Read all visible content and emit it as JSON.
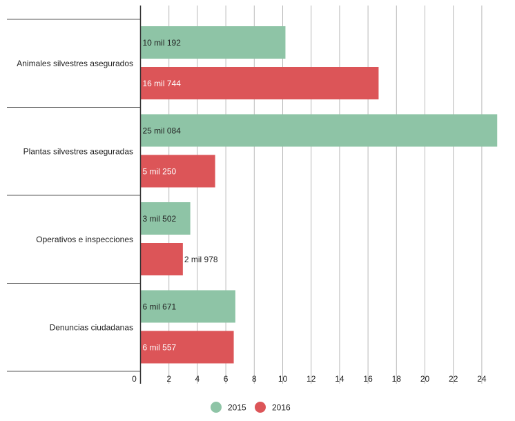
{
  "chart_data": {
    "type": "bar",
    "orientation": "horizontal",
    "categories": [
      "Animales silvestres asegurados",
      "Plantas silvestres aseguradas",
      "Operativos e inspecciones",
      "Denuncias ciudadanas"
    ],
    "series": [
      {
        "name": "2015",
        "color": "#8ec4a6",
        "values": [
          10.192,
          25.084,
          3.502,
          6.671
        ],
        "labels": [
          "10 mil 192",
          "25 mil 084",
          "3 mil 502",
          "6 mil 671"
        ]
      },
      {
        "name": "2016",
        "color": "#dc5558",
        "values": [
          16.744,
          5.25,
          2.978,
          6.557
        ],
        "labels": [
          "16 mil 744",
          "5 mil 250",
          "2 mil 978",
          "6 mil 557"
        ]
      }
    ],
    "xticks": [
      "0",
      "2",
      "4",
      "6",
      "8",
      "10",
      "12",
      "14",
      "16",
      "18",
      "20",
      "22",
      "24"
    ],
    "xlim": [
      0,
      25.2
    ],
    "grid": true,
    "legend_position": "bottom-center"
  }
}
